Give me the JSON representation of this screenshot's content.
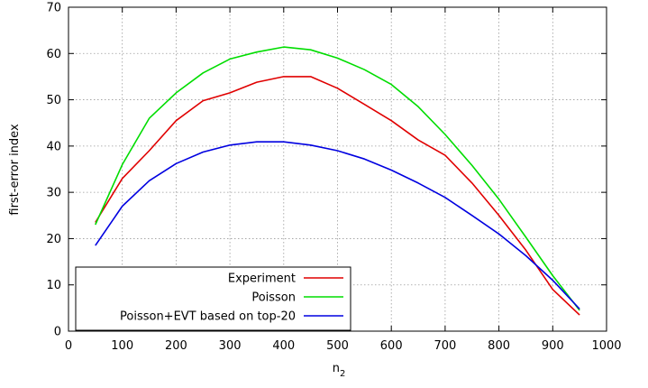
{
  "chart_data": {
    "type": "line",
    "xlabel": "n",
    "xlabel_sub": "2",
    "ylabel": "first-error index",
    "xlim": [
      0,
      1000
    ],
    "ylim": [
      0,
      70
    ],
    "xticks": [
      0,
      100,
      200,
      300,
      400,
      500,
      600,
      700,
      800,
      900,
      1000
    ],
    "yticks": [
      0,
      10,
      20,
      30,
      40,
      50,
      60,
      70
    ],
    "grid": true,
    "legend_position": "bottom-left",
    "x": [
      50,
      100,
      150,
      200,
      250,
      300,
      350,
      400,
      450,
      500,
      550,
      600,
      650,
      700,
      750,
      800,
      850,
      900,
      950
    ],
    "series": [
      {
        "name": "Experiment",
        "color": "#e00000",
        "values": [
          23.5,
          33,
          39,
          45.5,
          49.8,
          51.5,
          53.8,
          55,
          55,
          52.5,
          49,
          45.5,
          41.3,
          38,
          32,
          25,
          17.5,
          9,
          3.5
        ]
      },
      {
        "name": "Poisson",
        "color": "#00dd00",
        "values": [
          23,
          36,
          46,
          51.5,
          55.8,
          58.8,
          60.3,
          61.4,
          60.8,
          59,
          56.5,
          53.3,
          48.5,
          42.5,
          35.8,
          28.5,
          20.3,
          12,
          4.5
        ]
      },
      {
        "name": "Poisson+EVT based on top-20",
        "color": "#0000e0",
        "values": [
          18.5,
          27,
          32.5,
          36.2,
          38.7,
          40.2,
          40.9,
          40.9,
          40.2,
          39,
          37.2,
          34.8,
          32,
          28.9,
          25,
          21,
          16.3,
          11,
          4.8
        ]
      }
    ]
  }
}
